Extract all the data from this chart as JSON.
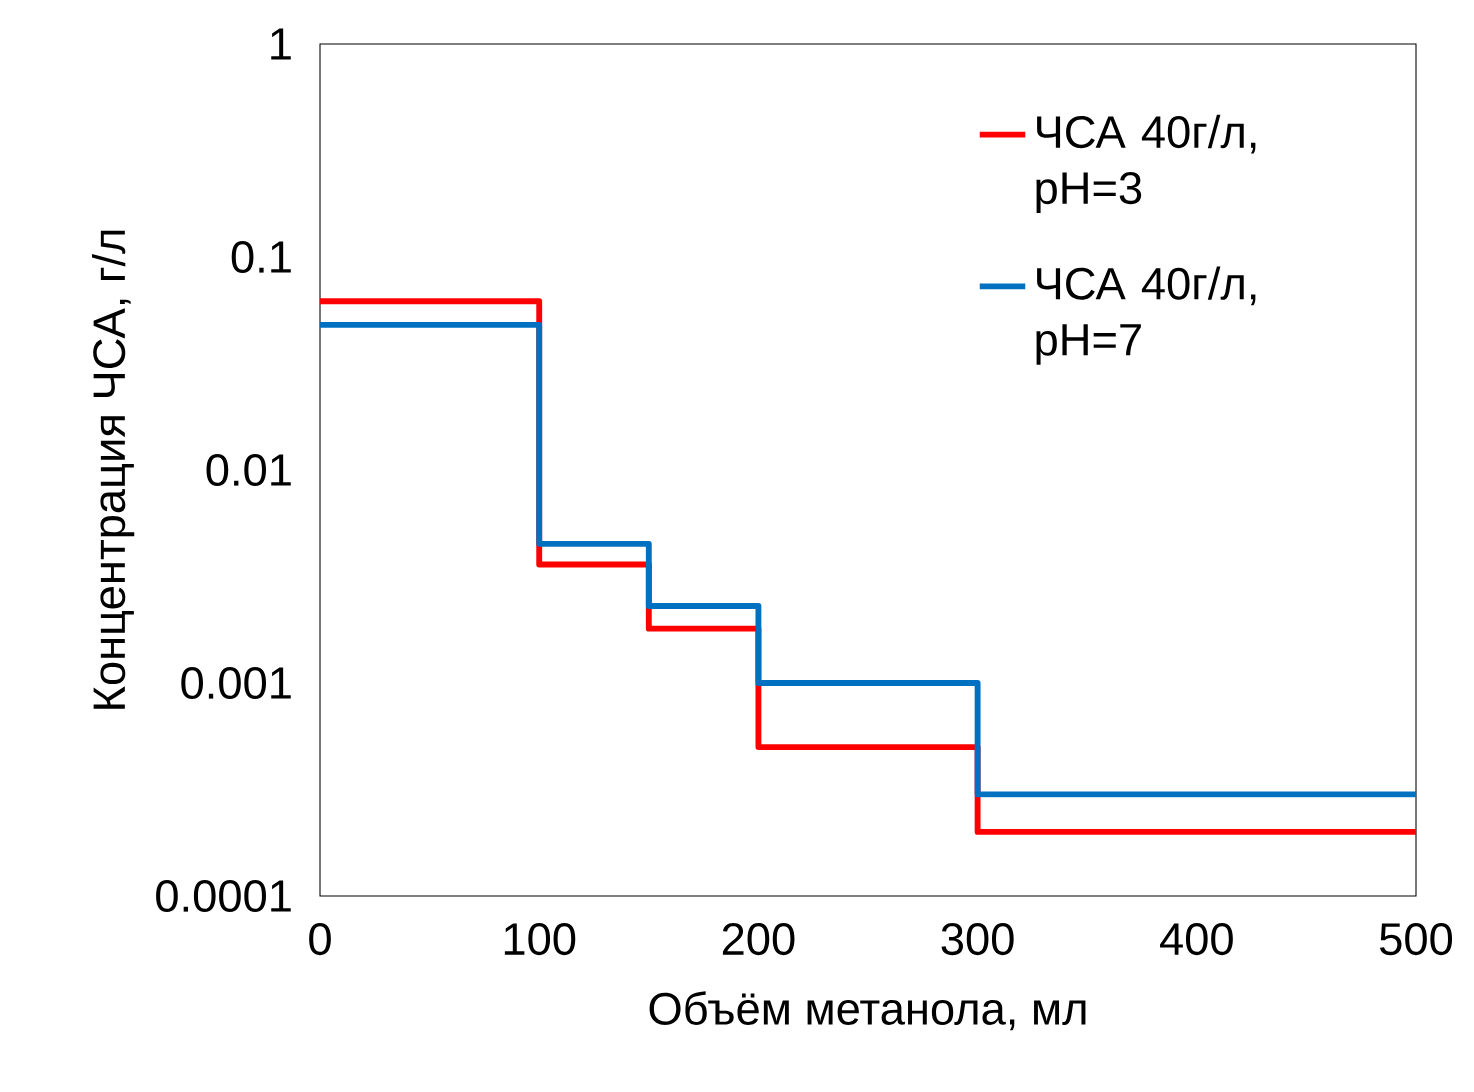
{
  "chart_data": {
    "type": "step",
    "xlabel": "Объём метанола, мл",
    "ylabel": "Концентрация ЧСА, г/л",
    "log": "y",
    "legend": "top right",
    "grid": false,
    "x": [
      0,
      100,
      150,
      200,
      300,
      500
    ],
    "series": [
      {
        "name": "ЧСА 40г/л, pH=3",
        "color": "#ff0000",
        "values": [
          0.062,
          0.0036,
          0.0018,
          0.0005,
          0.0002,
          0.0002
        ]
      },
      {
        "name": "ЧСА 40г/л, pH=7",
        "color": "#0070c0",
        "values": [
          0.048,
          0.0045,
          0.0023,
          0.001,
          0.0003,
          0.0003
        ]
      }
    ],
    "xlim": [
      0,
      500
    ],
    "xticks": [
      0,
      100,
      200,
      300,
      400,
      500
    ],
    "ylim": [
      0.0001,
      1
    ],
    "yticks": [
      0.0001,
      0.001,
      0.01,
      0.1,
      1
    ]
  }
}
